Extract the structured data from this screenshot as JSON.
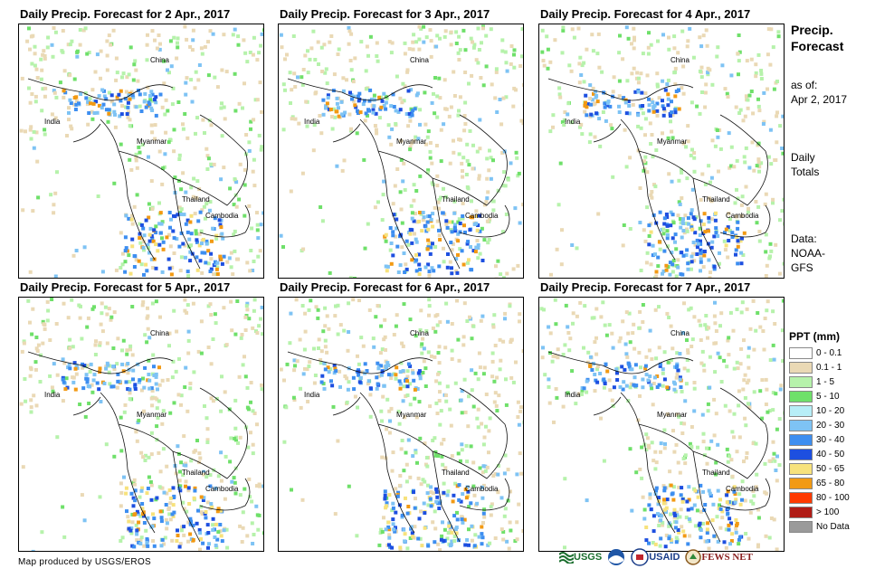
{
  "panels": [
    {
      "title": "Daily Precip. Forecast for 2 Apr., 2017"
    },
    {
      "title": "Daily Precip. Forecast for 3 Apr., 2017"
    },
    {
      "title": "Daily Precip. Forecast for 4 Apr., 2017"
    },
    {
      "title": "Daily Precip. Forecast for 5 Apr., 2017"
    },
    {
      "title": "Daily Precip. Forecast for 6 Apr., 2017"
    },
    {
      "title": "Daily Precip. Forecast for 7 Apr., 2017"
    }
  ],
  "map_labels": {
    "china": "China",
    "india": "India",
    "myanmar": "Myanmar",
    "thailand": "Thailand",
    "cambodia": "Cambodia"
  },
  "side": {
    "title_line1": "Precip.",
    "title_line2": "Forecast",
    "asof_line1": "as of:",
    "asof_line2": "Apr 2, 2017",
    "daily_line1": "Daily",
    "daily_line2": "Totals",
    "data_line1": "Data:",
    "data_line2": "NOAA-",
    "data_line3": "GFS"
  },
  "legend": {
    "title": "PPT (mm)",
    "items": [
      {
        "label": "0 - 0.1",
        "color": "#ffffff"
      },
      {
        "label": "0.1 - 1",
        "color": "#ead9b5"
      },
      {
        "label": "1 - 5",
        "color": "#b6f2ab"
      },
      {
        "label": "5 - 10",
        "color": "#6fe06a"
      },
      {
        "label": "10 - 20",
        "color": "#b7eef7"
      },
      {
        "label": "20 - 30",
        "color": "#7ec3f4"
      },
      {
        "label": "30 - 40",
        "color": "#3d8ef0"
      },
      {
        "label": "40 - 50",
        "color": "#1d4fe0"
      },
      {
        "label": "50 - 65",
        "color": "#f7e27c"
      },
      {
        "label": "65 - 80",
        "color": "#f29a14"
      },
      {
        "label": "80 - 100",
        "color": "#ff3a00"
      },
      {
        "label": "> 100",
        "color": "#b01c16"
      },
      {
        "label": "No Data",
        "color": "#9a9a9a"
      }
    ]
  },
  "credit": "Map produced by USGS/EROS",
  "logos": {
    "usgs": "USGS",
    "usaid": "USAID",
    "fewsnet": "FEWS NET"
  }
}
